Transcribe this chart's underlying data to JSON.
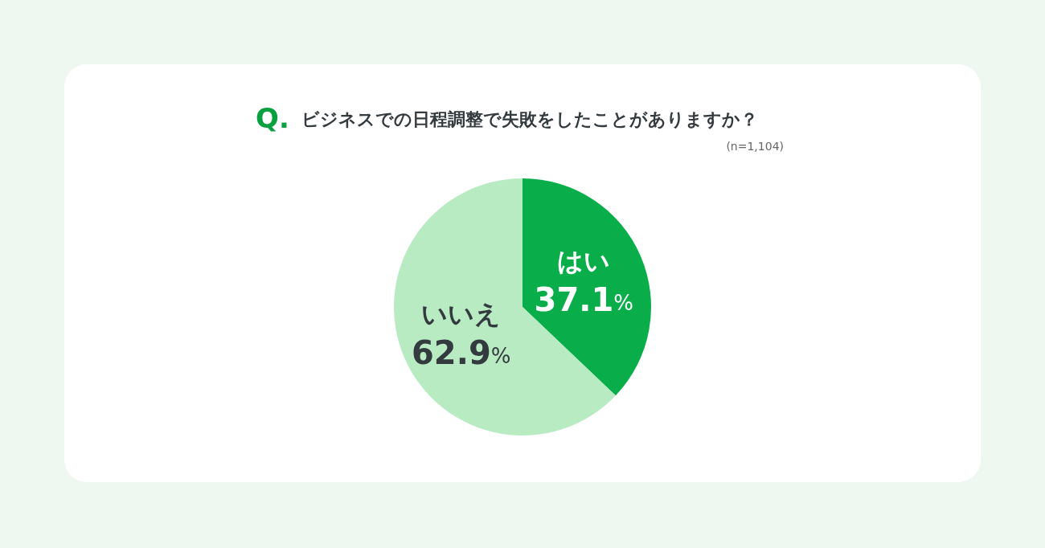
{
  "chart_data": {
    "type": "pie",
    "title": "ビジネスでの日程調整で失敗をしたことがありますか？",
    "subtitle": "(n=1,104)",
    "annotations": [
      "Q."
    ],
    "categories": [
      "はい",
      "いいえ"
    ],
    "values": [
      37.1,
      62.9
    ],
    "value_labels": [
      "37.1%",
      "62.9%"
    ],
    "colors": [
      "#09ad4a",
      "#b9ebc3"
    ],
    "legend": false
  }
}
